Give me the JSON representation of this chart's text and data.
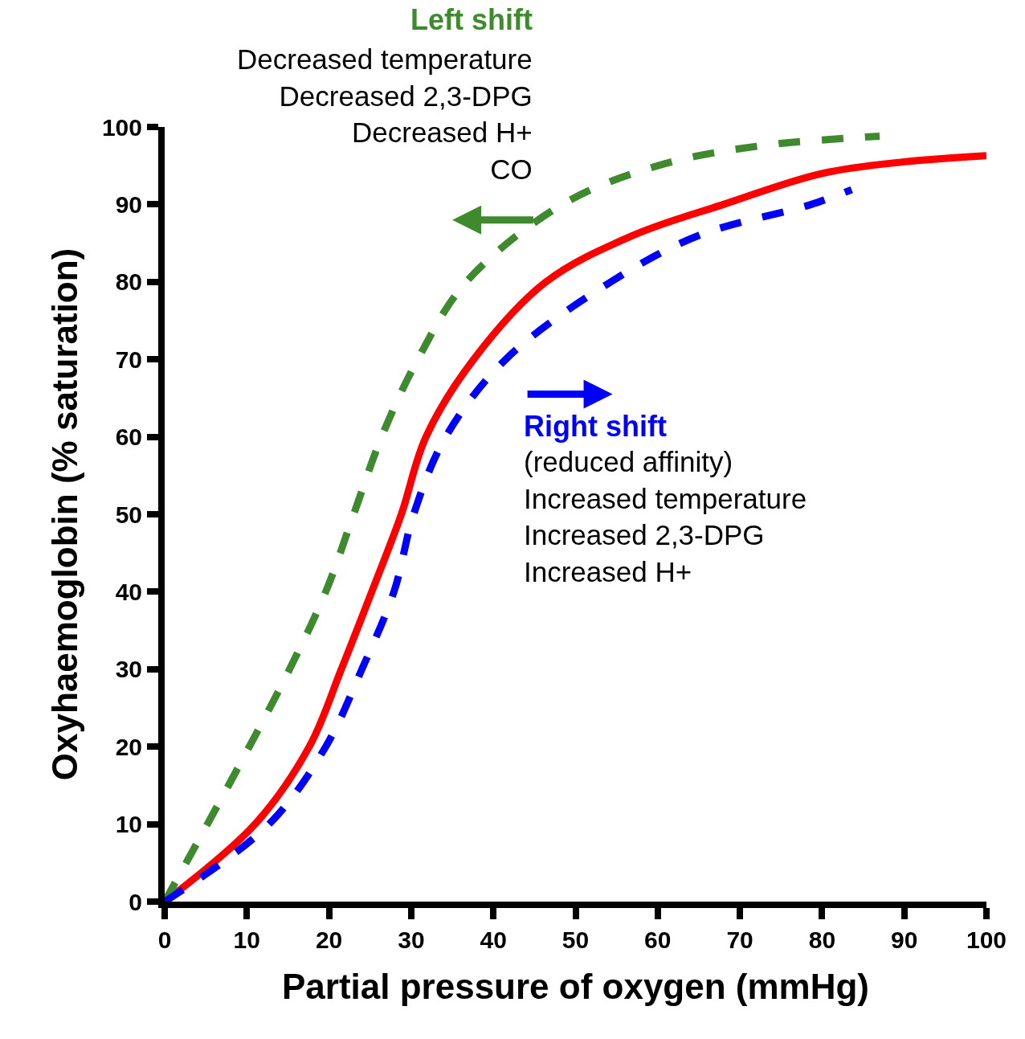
{
  "chart_data": {
    "type": "line",
    "xlabel": "Partial pressure of oxygen (mmHg)",
    "ylabel": "Oxyhaemoglobin (% saturation)",
    "xlim": [
      0,
      100
    ],
    "ylim": [
      0,
      100
    ],
    "xticks": [
      0,
      10,
      20,
      30,
      40,
      50,
      60,
      70,
      80,
      90,
      100
    ],
    "yticks": [
      0,
      10,
      20,
      30,
      40,
      50,
      60,
      70,
      80,
      90,
      100
    ],
    "marker": "none",
    "series": [
      {
        "color": "#ff0000",
        "line_style": "solid",
        "x": [
          0,
          11,
          17.6,
          21.5,
          25.2,
          28.8,
          31.8,
          37.6,
          46.4,
          57,
          68,
          80,
          90,
          100
        ],
        "values": [
          0,
          10,
          20,
          30,
          40,
          50,
          60,
          70,
          80,
          86,
          90,
          94,
          95.5,
          96.3
        ]
      },
      {
        "color": "#3f8a2e",
        "line_style": "dashed",
        "x": [
          0,
          5.2,
          10.3,
          15.2,
          19.6,
          23,
          26.4,
          30.8,
          36.7,
          48.4,
          60,
          72,
          87
        ],
        "values": [
          0,
          10,
          20,
          30,
          40,
          50,
          60,
          70,
          80,
          90,
          95,
          97.5,
          98.8
        ]
      },
      {
        "color": "#0000ff",
        "line_style": "dashed",
        "x": [
          0,
          12.7,
          19.6,
          24,
          27.9,
          30.3,
          34.2,
          41.5,
          54.3,
          65,
          78.7,
          83.6
        ],
        "values": [
          0,
          10,
          20,
          30,
          40,
          50,
          60,
          70,
          80,
          86,
          90,
          91.9
        ]
      }
    ],
    "annotations": [
      "Left shift",
      "Decreased temperature\nDecreased 2,3-DPG\nDecreased H+\nCO",
      "Right shift",
      "(reduced affinity)\nIncreased temperature\nIncreased 2,3-DPG\nIncreased H+"
    ]
  }
}
